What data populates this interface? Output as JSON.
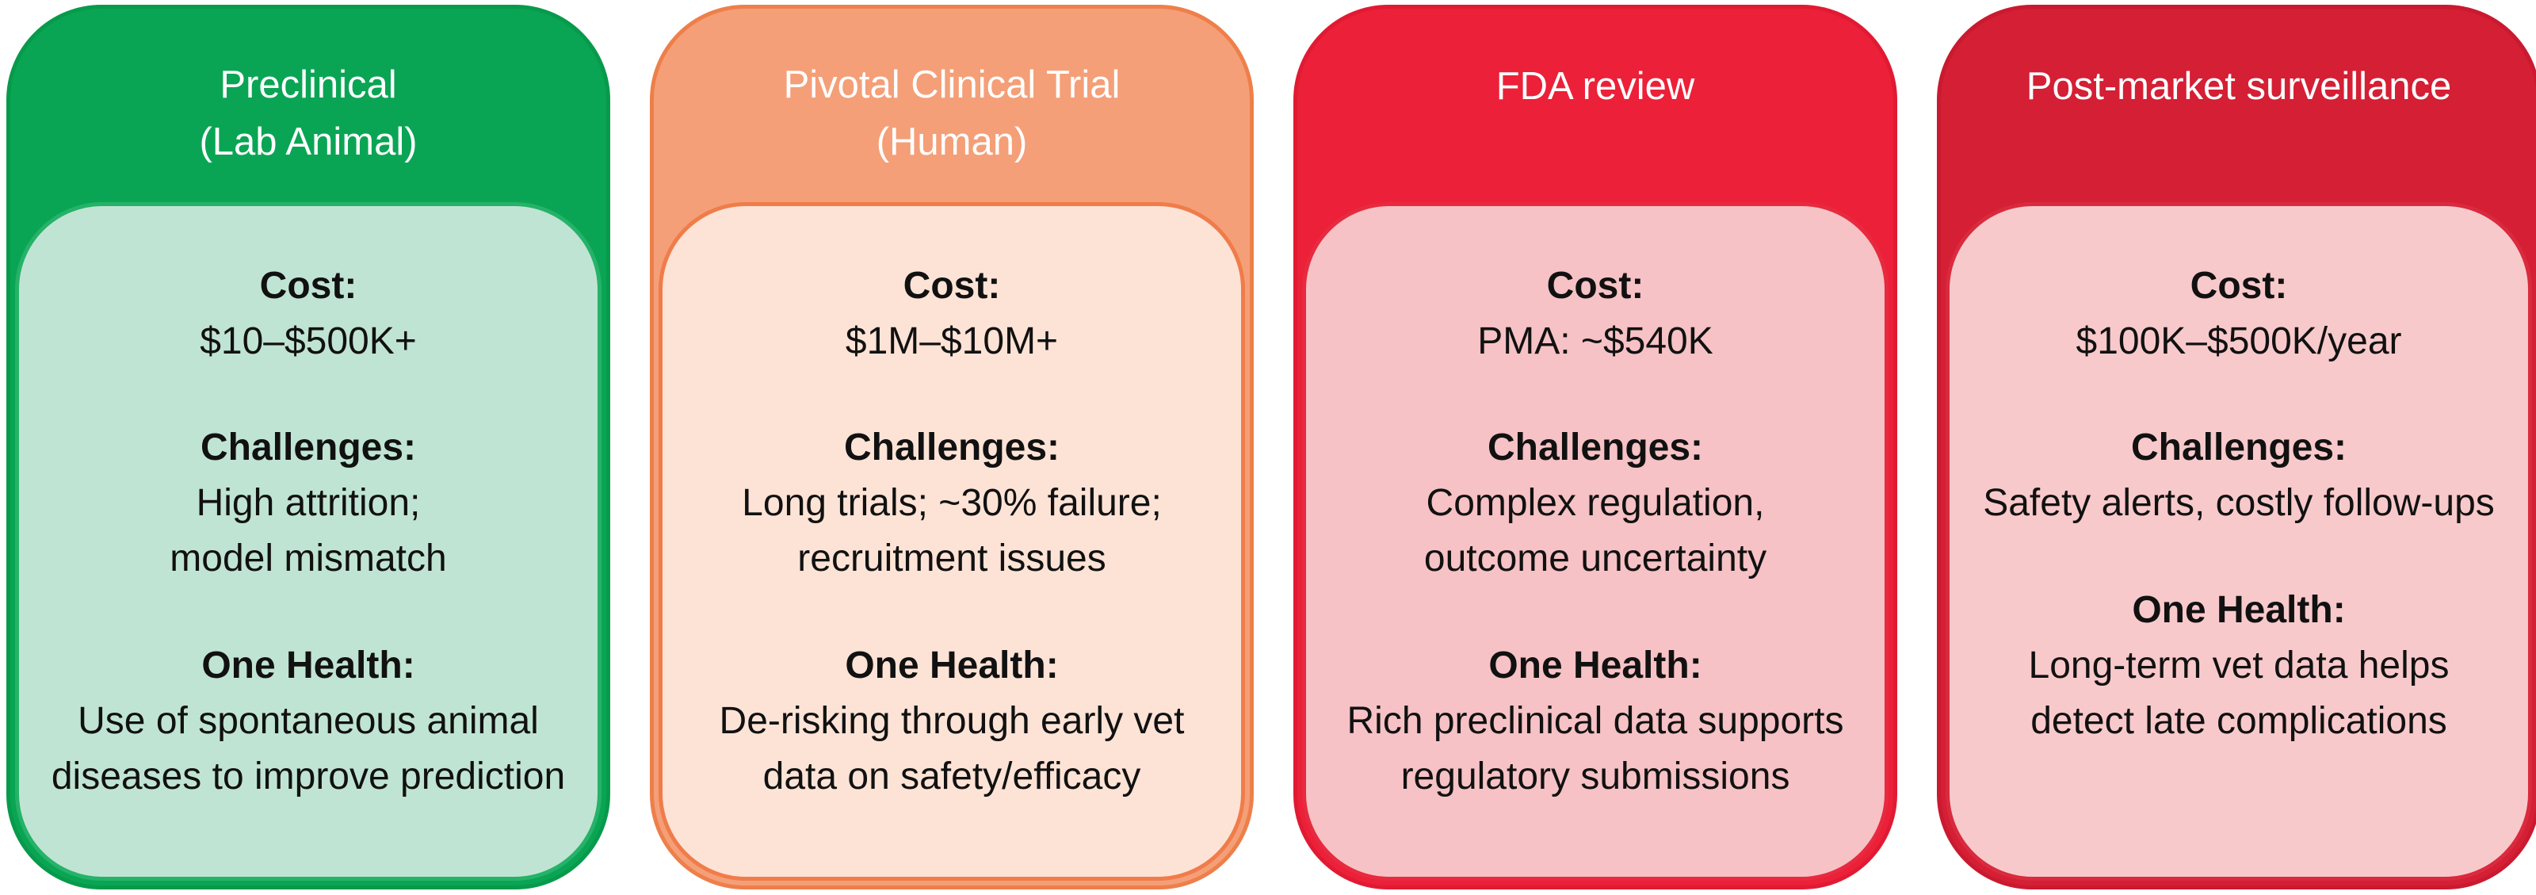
{
  "colors": {
    "preclinical": "#0aa554",
    "pivotal": "#f49f78",
    "fda": "#ec2038",
    "post_market": "#d41f35"
  },
  "stages": [
    {
      "title": "Preclinical\n(Lab Animal)",
      "cost_label": "Cost:",
      "cost": "$10–$500K+",
      "challenges_label": "Challenges:",
      "challenges": "High attrition;\nmodel mismatch",
      "one_health_label": "One Health:",
      "one_health": "Use of spontaneous animal\ndiseases to improve prediction"
    },
    {
      "title": "Pivotal Clinical Trial\n(Human)",
      "cost_label": "Cost:",
      "cost": "$1M–$10M+",
      "challenges_label": "Challenges:",
      "challenges": "Long trials; ~30% failure;\nrecruitment issues",
      "one_health_label": "One Health:",
      "one_health": "De-risking through early vet\ndata on safety/efficacy"
    },
    {
      "title": "FDA review",
      "cost_label": "Cost:",
      "cost": "PMA: ~$540K",
      "challenges_label": "Challenges:",
      "challenges": "Complex regulation,\noutcome uncertainty",
      "one_health_label": "One Health:",
      "one_health": "Rich preclinical data supports\nregulatory submissions"
    },
    {
      "title": "Post-market surveillance",
      "cost_label": "Cost:",
      "cost": "$100K–$500K/year",
      "challenges_label": "Challenges:",
      "challenges": "Safety alerts, costly follow-ups",
      "one_health_label": "One Health:",
      "one_health": "Long-term vet data helps\ndetect late complications"
    }
  ]
}
